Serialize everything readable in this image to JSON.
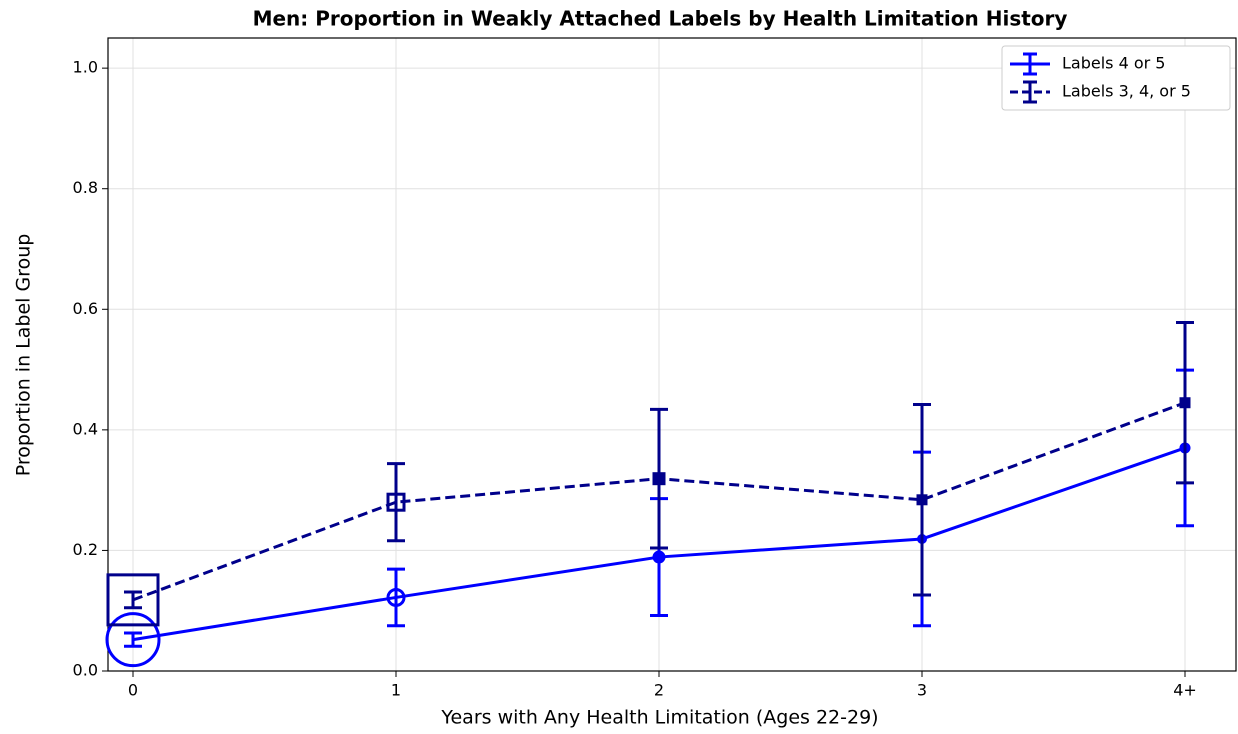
{
  "chart_data": {
    "type": "line",
    "title": "Men: Proportion in Weakly Attached Labels by Health Limitation History",
    "x_label": "Years with Any Health Limitation (Ages 22-29)",
    "y_label": "Proportion in Label Group",
    "categories": [
      "0",
      "1",
      "2",
      "3",
      "4+"
    ],
    "series": [
      {
        "name": "Labels 4 or 5",
        "color": "#0000ff",
        "line_style": "solid",
        "marker": "circle",
        "values": [
          0.052,
          0.122,
          0.189,
          0.219,
          0.37
        ],
        "errors": [
          0.011,
          0.047,
          0.097,
          0.144,
          0.129
        ],
        "sizes": [
          26,
          8,
          6,
          4.5,
          5
        ]
      },
      {
        "name": "Labels 3, 4, or 5",
        "color": "#00008b",
        "line_style": "dashed",
        "marker": "square",
        "values": [
          0.118,
          0.28,
          0.319,
          0.284,
          0.445
        ],
        "errors": [
          0.013,
          0.064,
          0.115,
          0.158,
          0.133
        ],
        "sizes": [
          25,
          8,
          6,
          5,
          5
        ]
      }
    ],
    "ylim": [
      0,
      1.05
    ],
    "yticks": [
      {
        "value": 0,
        "label": "0.0"
      },
      0.2,
      0.4,
      0.6,
      0.8,
      {
        "value": 1.0,
        "label": "1.0"
      }
    ],
    "grid": true,
    "legend": "upper right"
  }
}
